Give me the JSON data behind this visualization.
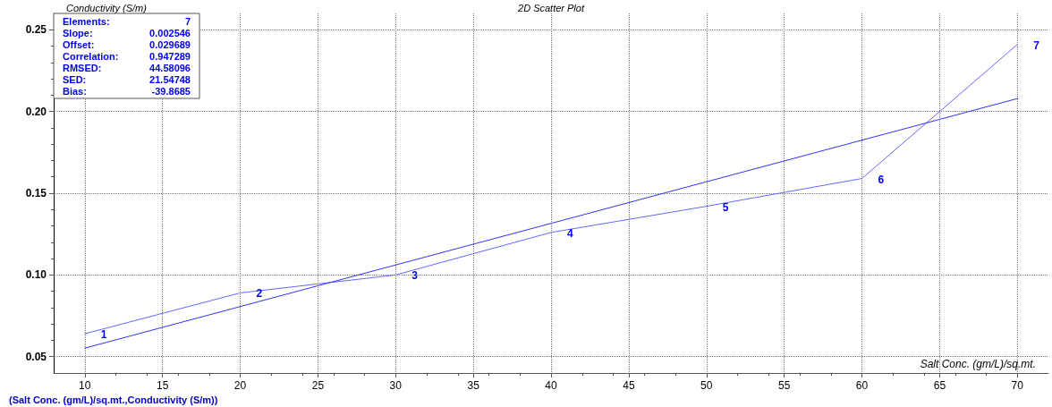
{
  "chart_data": {
    "type": "line",
    "title": "2D Scatter Plot",
    "xlabel": "Salt Conc. (gm/L)/sq.mt.",
    "ylabel": "Conductivity (S/m)",
    "x": [
      10,
      20,
      30,
      40,
      50,
      60,
      70
    ],
    "series": [
      {
        "color": "#6666ff",
        "values": [
          0.064,
          0.089,
          0.1,
          0.126,
          0.142,
          0.159,
          0.241
        ]
      },
      {
        "color": "#3333ee",
        "x": [
          10,
          70
        ],
        "values": [
          0.0552,
          0.2079
        ]
      }
    ],
    "xlim": [
      8,
      72
    ],
    "xticks": [
      10,
      15,
      20,
      25,
      30,
      35,
      40,
      45,
      50,
      55,
      60,
      65,
      70
    ],
    "ylim": [
      0.04,
      0.26
    ],
    "yticks": [
      0.05,
      {
        "value": 0.1,
        "label": "0.10"
      },
      0.15,
      {
        "value": 0.2,
        "label": "0.20"
      },
      0.25
    ],
    "grid": true,
    "marker": "none",
    "line_style": "solid",
    "annotations": [
      "(Salt Conc. (gm/L)/sq.mt.,Conductivity (S/m))",
      "Elements:",
      "7",
      "Slope:",
      "0.002546",
      "Offset:",
      "0.029689",
      "Correlation:",
      "0.947289",
      "RMSED:",
      "44.58096",
      "SED:",
      "21.54748",
      "Bias:",
      "-39.8685",
      {
        "text": "1",
        "x": 10,
        "y": 0.064
      },
      {
        "text": "2",
        "x": 20,
        "y": 0.089
      },
      {
        "text": "3",
        "x": 30,
        "y": 0.1
      },
      {
        "text": "4",
        "x": 40,
        "y": 0.126
      },
      {
        "text": "5",
        "x": 50,
        "y": 0.142
      },
      {
        "text": "6",
        "x": 60,
        "y": 0.159
      },
      {
        "text": "7",
        "x": 70,
        "y": 0.241
      }
    ]
  }
}
